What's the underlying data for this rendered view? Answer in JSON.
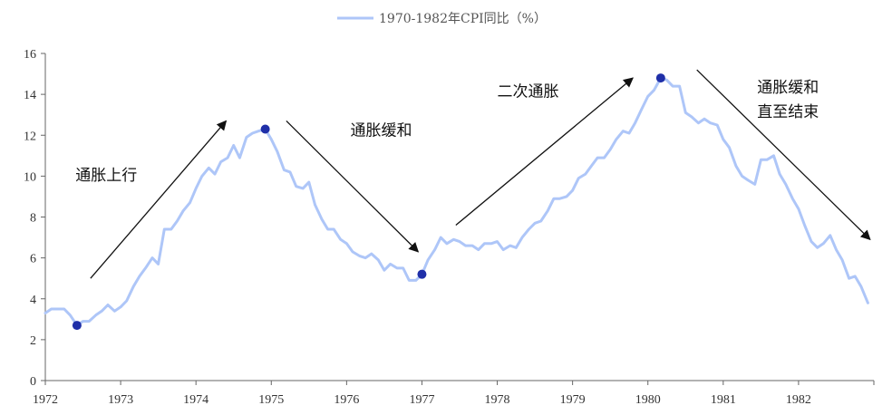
{
  "chart_data": {
    "type": "line",
    "legend": {
      "label": "1970-1982年CPI同比（%）",
      "placement": "top-center",
      "color": "#aec6f8"
    },
    "x_ticks": [
      "1972",
      "1973",
      "1974",
      "1975",
      "1976",
      "1977",
      "1978",
      "1979",
      "1980",
      "1981",
      "1982"
    ],
    "y_ticks": [
      "0",
      "2",
      "4",
      "6",
      "8",
      "10",
      "12",
      "14",
      "16"
    ],
    "xlim": [
      1972,
      1983
    ],
    "ylim": [
      0,
      16
    ],
    "series": [
      {
        "name": "1970-1982年CPI同比（%）",
        "color": "#aec6f8",
        "x": [
          1972.0,
          1972.08,
          1972.17,
          1972.25,
          1972.33,
          1972.42,
          1972.5,
          1972.58,
          1972.67,
          1972.75,
          1972.83,
          1972.92,
          1973.0,
          1973.08,
          1973.17,
          1973.25,
          1973.33,
          1973.42,
          1973.5,
          1973.58,
          1973.67,
          1973.75,
          1973.83,
          1973.92,
          1974.0,
          1974.08,
          1974.17,
          1974.25,
          1974.33,
          1974.42,
          1974.5,
          1974.58,
          1974.67,
          1974.75,
          1974.83,
          1974.92,
          1975.0,
          1975.08,
          1975.17,
          1975.25,
          1975.33,
          1975.42,
          1975.5,
          1975.58,
          1975.67,
          1975.75,
          1975.83,
          1975.92,
          1976.0,
          1976.08,
          1976.17,
          1976.25,
          1976.33,
          1976.42,
          1976.5,
          1976.58,
          1976.67,
          1976.75,
          1976.83,
          1976.92,
          1977.0,
          1977.08,
          1977.17,
          1977.25,
          1977.33,
          1977.42,
          1977.5,
          1977.58,
          1977.67,
          1977.75,
          1977.83,
          1977.92,
          1978.0,
          1978.08,
          1978.17,
          1978.25,
          1978.33,
          1978.42,
          1978.5,
          1978.58,
          1978.67,
          1978.75,
          1978.83,
          1978.92,
          1979.0,
          1979.08,
          1979.17,
          1979.25,
          1979.33,
          1979.42,
          1979.5,
          1979.58,
          1979.67,
          1979.75,
          1979.83,
          1979.92,
          1980.0,
          1980.08,
          1980.17,
          1980.25,
          1980.33,
          1980.42,
          1980.5,
          1980.58,
          1980.67,
          1980.75,
          1980.83,
          1980.92,
          1981.0,
          1981.08,
          1981.17,
          1981.25,
          1981.33,
          1981.42,
          1981.5,
          1981.58,
          1981.67,
          1981.75,
          1981.83,
          1981.92,
          1982.0,
          1982.08,
          1982.17,
          1982.25,
          1982.33,
          1982.42,
          1982.5,
          1982.58,
          1982.67,
          1982.75,
          1982.83,
          1982.92
        ],
        "y": [
          3.3,
          3.5,
          3.5,
          3.5,
          3.2,
          2.7,
          2.9,
          2.9,
          3.2,
          3.4,
          3.7,
          3.4,
          3.6,
          3.9,
          4.6,
          5.1,
          5.5,
          6.0,
          5.7,
          7.4,
          7.4,
          7.8,
          8.3,
          8.7,
          9.4,
          10.0,
          10.4,
          10.1,
          10.7,
          10.9,
          11.5,
          10.9,
          11.9,
          12.1,
          12.2,
          12.3,
          11.8,
          11.2,
          10.3,
          10.2,
          9.5,
          9.4,
          9.7,
          8.6,
          7.9,
          7.4,
          7.4,
          6.9,
          6.7,
          6.3,
          6.1,
          6.0,
          6.2,
          5.9,
          5.4,
          5.7,
          5.5,
          5.5,
          4.9,
          4.9,
          5.2,
          5.9,
          6.4,
          7.0,
          6.7,
          6.9,
          6.8,
          6.6,
          6.6,
          6.4,
          6.7,
          6.7,
          6.8,
          6.4,
          6.6,
          6.5,
          7.0,
          7.4,
          7.7,
          7.8,
          8.3,
          8.9,
          8.9,
          9.0,
          9.3,
          9.9,
          10.1,
          10.5,
          10.9,
          10.9,
          11.3,
          11.8,
          12.2,
          12.1,
          12.6,
          13.3,
          13.9,
          14.2,
          14.8,
          14.7,
          14.4,
          14.4,
          13.1,
          12.9,
          12.6,
          12.8,
          12.6,
          12.5,
          11.8,
          11.4,
          10.5,
          10.0,
          9.8,
          9.6,
          10.8,
          10.8,
          11.0,
          10.1,
          9.6,
          8.9,
          8.4,
          7.6,
          6.8,
          6.5,
          6.7,
          7.1,
          6.4,
          5.9,
          5.0,
          5.1,
          4.6,
          3.8
        ]
      }
    ],
    "highlight_points": [
      {
        "x": 1972.42,
        "y": 2.7
      },
      {
        "x": 1974.92,
        "y": 12.3
      },
      {
        "x": 1977.0,
        "y": 5.2
      },
      {
        "x": 1980.17,
        "y": 14.8
      }
    ],
    "highlight_color": "#1f2fa8",
    "annotations": [
      {
        "lines": [
          "通胀上行"
        ],
        "x": 1972.4,
        "y": 9.8
      },
      {
        "lines": [
          "通胀缓和"
        ],
        "x": 1976.05,
        "y": 12.0
      },
      {
        "lines": [
          "二次通胀"
        ],
        "x": 1978.0,
        "y": 13.9
      },
      {
        "lines": [
          "通胀缓和",
          "直至结束"
        ],
        "x": 1981.45,
        "y": 14.1
      }
    ],
    "arrows": [
      {
        "from": [
          1972.6,
          5.0
        ],
        "to": [
          1974.4,
          12.7
        ]
      },
      {
        "from": [
          1975.2,
          12.7
        ],
        "to": [
          1976.95,
          6.3
        ]
      },
      {
        "from": [
          1977.45,
          7.6
        ],
        "to": [
          1979.8,
          14.8
        ]
      },
      {
        "from": [
          1980.65,
          15.2
        ],
        "to": [
          1982.95,
          6.9
        ]
      }
    ],
    "grid": false
  }
}
